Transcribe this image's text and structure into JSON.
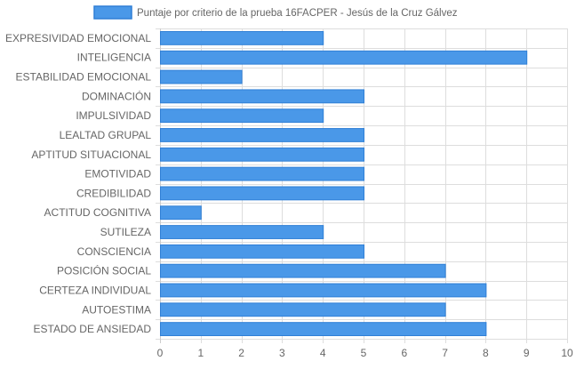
{
  "chart_data": {
    "type": "bar",
    "orientation": "horizontal",
    "categories": [
      "EXPRESIVIDAD EMOCIONAL",
      "INTELIGENCIA",
      "ESTABILIDAD EMOCIONAL",
      "DOMINACIÓN",
      "IMPULSIVIDAD",
      "LEALTAD GRUPAL",
      "APTITUD SITUACIONAL",
      "EMOTIVIDAD",
      "CREDIBILIDAD",
      "ACTITUD COGNITIVA",
      "SUTILEZA",
      "CONSCIENCIA",
      "POSICIÓN SOCIAL",
      "CERTEZA INDIVIDUAL",
      "AUTOESTIMA",
      "ESTADO DE ANSIEDAD"
    ],
    "series": [
      {
        "name": "Puntaje por criterio de la prueba 16FACPER - Jesús de la Cruz Gálvez",
        "values": [
          4,
          9,
          2,
          5,
          4,
          5,
          5,
          5,
          5,
          1,
          4,
          5,
          7,
          8,
          7,
          8
        ],
        "color": "#4a98e8",
        "border_color": "#2f7fd6"
      }
    ],
    "xlim": [
      0,
      10
    ],
    "x_ticks": [
      "0",
      "1",
      "2",
      "3",
      "4",
      "5",
      "6",
      "7",
      "8",
      "9",
      "10"
    ],
    "grid": true,
    "grid_color": "#dddddd",
    "legend_position": "top"
  }
}
